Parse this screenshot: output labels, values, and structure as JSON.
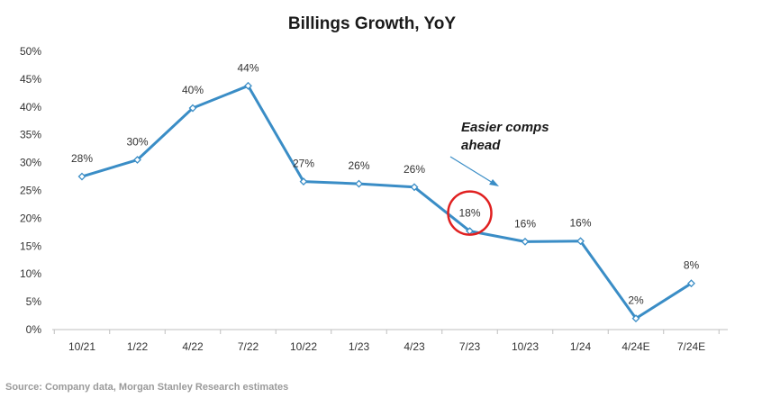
{
  "chart_data": {
    "type": "line",
    "title": "Billings Growth, YoY",
    "categories": [
      "10/21",
      "1/22",
      "4/22",
      "7/22",
      "10/22",
      "1/23",
      "4/23",
      "7/23",
      "10/23",
      "1/24",
      "4/24E",
      "7/24E"
    ],
    "values": [
      27.5,
      30.5,
      39.8,
      43.8,
      26.6,
      26.2,
      25.6,
      17.7,
      15.8,
      15.9,
      2.0,
      8.3
    ],
    "data_labels": [
      "28%",
      "30%",
      "40%",
      "44%",
      "27%",
      "26%",
      "26%",
      "18%",
      "16%",
      "16%",
      "2%",
      "8%"
    ],
    "yticks": [
      "0%",
      "5%",
      "10%",
      "15%",
      "20%",
      "25%",
      "30%",
      "35%",
      "40%",
      "45%",
      "50%"
    ],
    "ylim": [
      0,
      50
    ],
    "xlabel": "",
    "ylabel": "",
    "grid": false,
    "legend": "none",
    "line_color": "#3a8dc6",
    "highlight": {
      "category": "7/23",
      "color": "#e02020"
    },
    "annotation": {
      "text_line1": "Easier comps",
      "text_line2": "ahead",
      "arrow_color": "#3a8dc6"
    },
    "source": "Source: Company data, Morgan Stanley Research estimates"
  }
}
